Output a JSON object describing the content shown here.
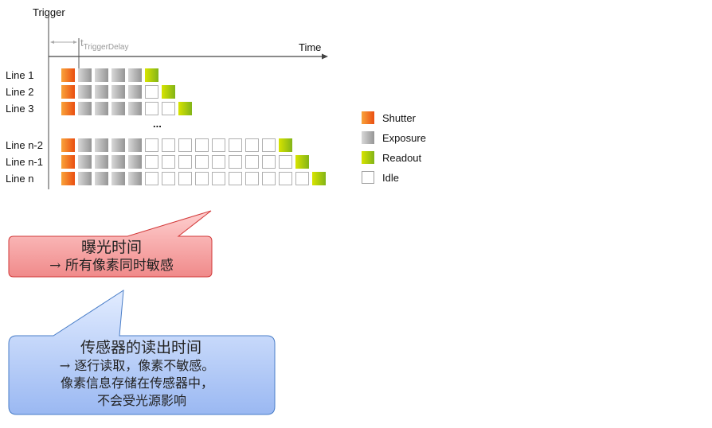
{
  "diagram": {
    "trigger_label": "Trigger",
    "time_label": "Time",
    "delay_t": "t",
    "delay_sub": "TriggerDelay",
    "ellipsis": "...",
    "colors": {
      "shutter": "#f06a1e",
      "exposure": "#a8a8a8",
      "readout": "#a6c800",
      "idle": "#ffffff",
      "idle_border": "#b0b0b0"
    },
    "lines": [
      {
        "label": "Line 1",
        "cells": [
          "S",
          "E",
          "E",
          "E",
          "E",
          "R"
        ]
      },
      {
        "label": "Line 2",
        "cells": [
          "S",
          "E",
          "E",
          "E",
          "E",
          "I",
          "R"
        ]
      },
      {
        "label": "Line 3",
        "cells": [
          "S",
          "E",
          "E",
          "E",
          "E",
          "I",
          "I",
          "R"
        ]
      },
      {
        "label": "Line n-2",
        "cells": [
          "S",
          "E",
          "E",
          "E",
          "E",
          "I",
          "I",
          "I",
          "I",
          "I",
          "I",
          "I",
          "I",
          "R"
        ]
      },
      {
        "label": "Line n-1",
        "cells": [
          "S",
          "E",
          "E",
          "E",
          "E",
          "I",
          "I",
          "I",
          "I",
          "I",
          "I",
          "I",
          "I",
          "I",
          "R"
        ]
      },
      {
        "label": "Line n",
        "cells": [
          "S",
          "E",
          "E",
          "E",
          "E",
          "I",
          "I",
          "I",
          "I",
          "I",
          "I",
          "I",
          "I",
          "I",
          "I",
          "R"
        ]
      }
    ],
    "legend": [
      {
        "key": "S",
        "label": "Shutter"
      },
      {
        "key": "E",
        "label": "Exposure"
      },
      {
        "key": "R",
        "label": "Readout"
      },
      {
        "key": "I",
        "label": "Idle"
      }
    ]
  },
  "callouts": {
    "exposure": {
      "title": "曝光时间",
      "line1": "→ 所有像素同时敏感"
    },
    "readout": {
      "title": "传感器的读出时间",
      "line1": "→  逐行读取，像素不敏感。",
      "line2": "像素信息存储在传感器中，",
      "line3": "不会受光源影响"
    }
  }
}
